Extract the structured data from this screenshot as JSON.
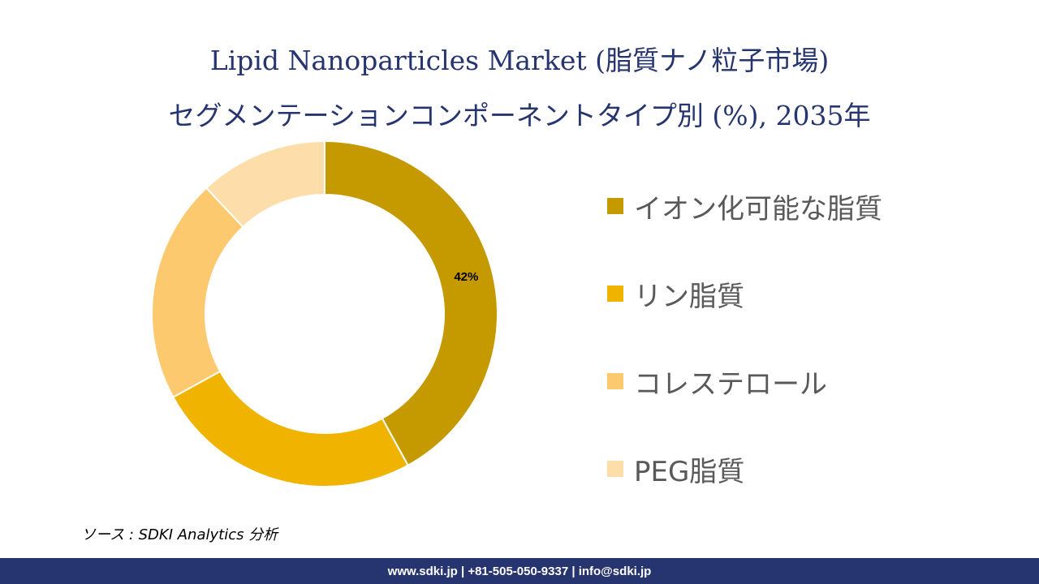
{
  "header": {
    "title_line1": "Lipid Nanoparticles Market (脂質ナノ粒子市場)",
    "title_line2": "セグメンテーションコンポーネントタイプ別 (%), 2035年"
  },
  "chart_data": {
    "type": "pie",
    "variant": "donut",
    "categories": [
      "イオン化可能な脂質",
      "リン脂質",
      "コレステロール",
      "PEG脂質"
    ],
    "values": [
      42,
      25,
      21,
      12
    ],
    "data_labels": [
      "42%",
      "",
      "",
      ""
    ],
    "colors": [
      "#C49A00",
      "#EFB300",
      "#FCC96E",
      "#FDDEAB"
    ],
    "legend_position": "right"
  },
  "source": {
    "text": "ソース : SDKI Analytics 分析"
  },
  "footer": {
    "text": "www.sdki.jp | +81-505-050-9337 | info@sdki.jp",
    "background_color": "#263570"
  }
}
